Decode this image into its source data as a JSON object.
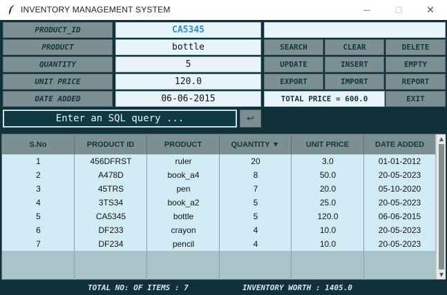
{
  "window": {
    "title": "INVENTORY MANAGEMENT SYSTEM",
    "icon": "feather-icon",
    "controls": {
      "minimize": "—",
      "maximize": "☐",
      "close": "✕"
    }
  },
  "form": {
    "product_id_label": "PRODUCT_ID",
    "product_id_value": "CA5345",
    "product_label": "PRODUCT",
    "product_value": "bottle",
    "quantity_label": "QUANTITY",
    "quantity_value": "5",
    "unit_price_label": "UNIT PRICE",
    "unit_price_value": "120.0",
    "date_added_label": "DATE ADDED",
    "date_added_value": "06-06-2015"
  },
  "buttons": {
    "search": "SEARCH",
    "clear": "CLEAR",
    "delete": "DELETE",
    "update": "UPDATE",
    "insert": "INSERT",
    "empty": "EMPTY",
    "export": "EXPORT",
    "import": "IMPORT",
    "report": "REPORT",
    "exit": "EXIT"
  },
  "total_price": "TOTAL PRICE = 600.0",
  "sql": {
    "text": "Enter an SQL query ...",
    "submit_icon": "↩"
  },
  "table": {
    "headers": [
      "S.No",
      "PRODUCT ID",
      "PRODUCT",
      "QUANTITY ▼",
      "UNIT PRICE",
      "DATE ADDED"
    ],
    "rows": [
      [
        "1",
        "456DFRST",
        "ruler",
        "20",
        "3.0",
        "01-01-2012"
      ],
      [
        "2",
        "A478D",
        "book_a4",
        "8",
        "50.0",
        "20-05-2023"
      ],
      [
        "3",
        "45TRS",
        "pen",
        "7",
        "20.0",
        "05-10-2020"
      ],
      [
        "4",
        "3TS34",
        "book_a2",
        "5",
        "25.0",
        "20-05-2023"
      ],
      [
        "5",
        "CA5345",
        "bottle",
        "5",
        "120.0",
        "06-06-2015"
      ],
      [
        "6",
        "DF233",
        "crayon",
        "4",
        "10.0",
        "20-05-2023"
      ],
      [
        "7",
        "DF234",
        "pencil",
        "4",
        "10.0",
        "20-05-2023"
      ]
    ]
  },
  "footer": {
    "total_items": "TOTAL NO: OF ITEMS : 7",
    "inventory_worth": "INVENTORY WORTH : 1405.0"
  },
  "colors": {
    "background": "#10313a",
    "label_bg": "#7c8f92",
    "field_bg": "#e8f4fa",
    "row_bg": "#d2ecf6",
    "accent_blue": "#2a8fd6"
  }
}
